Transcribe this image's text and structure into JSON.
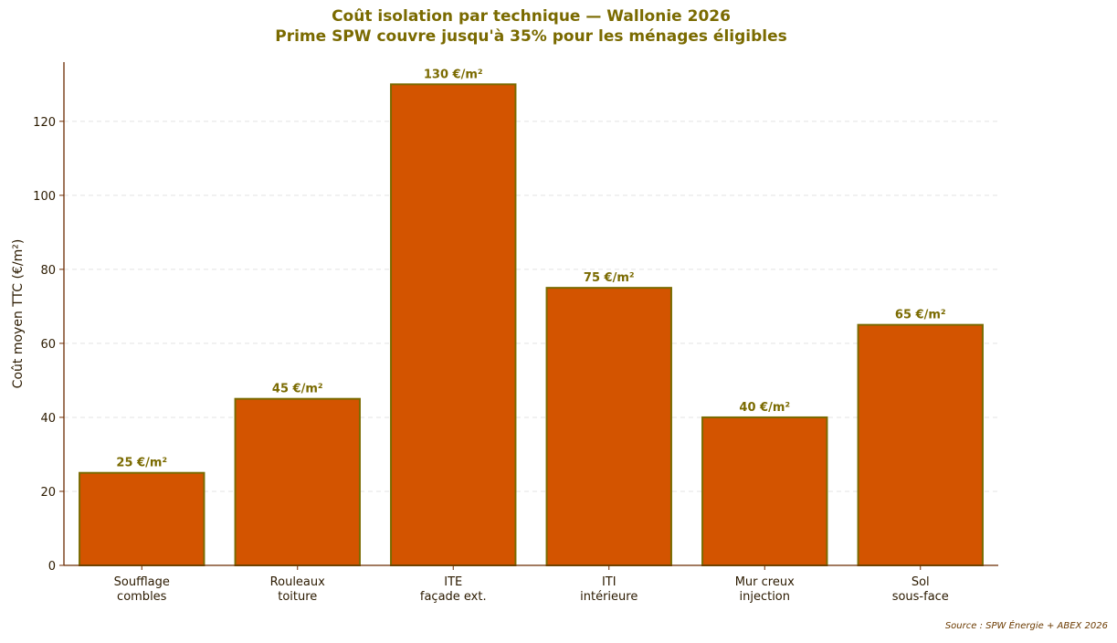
{
  "chart_data": {
    "type": "bar",
    "title": "Coût isolation par technique — Wallonie 2026",
    "subtitle": "Prime SPW couvre jusqu'à 35% pour les ménages éligibles",
    "ylabel": "Coût moyen TTC (€/m²)",
    "xlabel": "",
    "categories": [
      [
        "Soufflage",
        "combles"
      ],
      [
        "Rouleaux",
        "toiture"
      ],
      [
        "ITE",
        "façade ext."
      ],
      [
        "ITI",
        "intérieure"
      ],
      [
        "Mur creux",
        "injection"
      ],
      [
        "Sol",
        "sous-face"
      ]
    ],
    "values": [
      25,
      45,
      130,
      75,
      40,
      65
    ],
    "value_labels": [
      "25 €/m²",
      "45 €/m²",
      "130 €/m²",
      "75 €/m²",
      "40 €/m²",
      "65 €/m²"
    ],
    "ylim": [
      0,
      136
    ],
    "yticks": [
      0,
      20,
      40,
      60,
      80,
      100,
      120
    ],
    "grid": true,
    "colors": {
      "bar_fill": "#d35400",
      "bar_edge": "#7a6a00",
      "label_text": "#7a6a00",
      "axis": "#6b2a00",
      "tick_text": "#2b1a00",
      "grid": "#e3e3e3"
    }
  },
  "source": "Source : SPW Énergie + ABEX 2026"
}
